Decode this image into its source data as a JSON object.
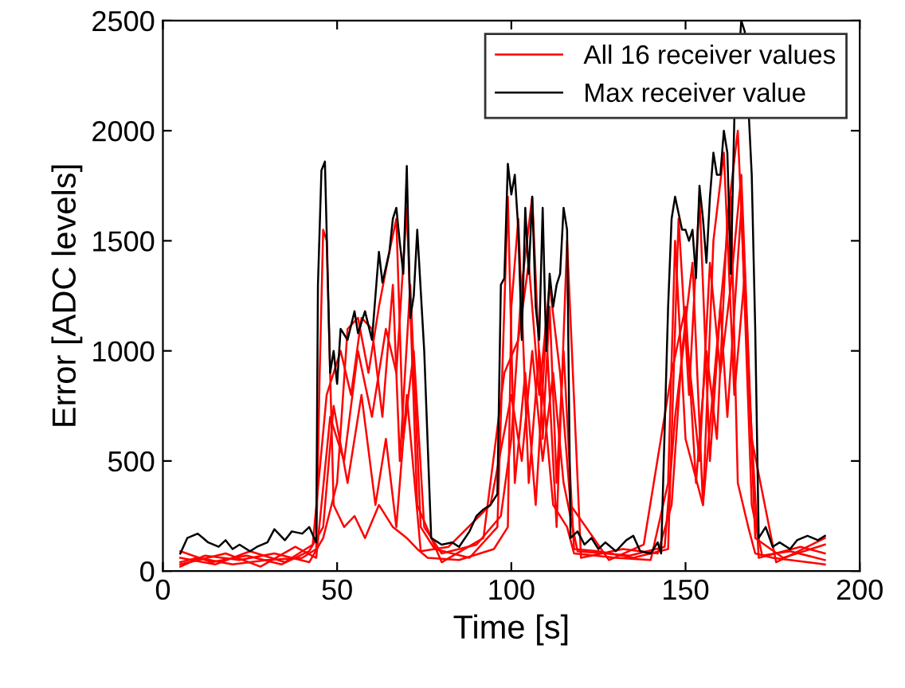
{
  "chart_data": {
    "type": "line",
    "xlabel": "Time [s]",
    "ylabel": "Error [ADC levels]",
    "xlim": [
      0,
      200
    ],
    "ylim": [
      0,
      2500
    ],
    "xticks": [
      0,
      50,
      100,
      150,
      200
    ],
    "yticks": [
      0,
      500,
      1000,
      1500,
      2000,
      2500
    ],
    "grid": false,
    "legend": "top right",
    "line_style": "solid",
    "marker": "none",
    "series": [
      {
        "name": "All 16 receiver values",
        "color": "#ff0000",
        "x": [
          5,
          10,
          20,
          30,
          40,
          44,
          45,
          46,
          47,
          49,
          52,
          55,
          58,
          62,
          66,
          70,
          73,
          76,
          85,
          95,
          99,
          100,
          102,
          105,
          108,
          112,
          116,
          118,
          130,
          140,
          145,
          147,
          150,
          155,
          160,
          163,
          165,
          168,
          170,
          175,
          185,
          190
        ],
        "values": [
          40,
          60,
          30,
          50,
          60,
          100,
          900,
          1550,
          1500,
          300,
          200,
          250,
          150,
          300,
          200,
          150,
          100,
          60,
          50,
          100,
          200,
          1200,
          1600,
          400,
          1000,
          300,
          200,
          80,
          60,
          50,
          400,
          1500,
          600,
          300,
          1200,
          1700,
          400,
          200,
          80,
          60,
          40,
          30
        ]
      },
      {
        "color": "#ff0000",
        "x": [
          5,
          12,
          22,
          32,
          42,
          46,
          50,
          53,
          56,
          59,
          62,
          65,
          67,
          69,
          72,
          75,
          80,
          90,
          97,
          100,
          103,
          106,
          109,
          111,
          113,
          115,
          118,
          125,
          135,
          145,
          148,
          151,
          154,
          157,
          160,
          162,
          166,
          169,
          172,
          180,
          190
        ],
        "values": [
          20,
          70,
          50,
          80,
          40,
          150,
          400,
          1100,
          1150,
          900,
          1200,
          1450,
          1600,
          600,
          1000,
          200,
          80,
          120,
          250,
          600,
          1300,
          1700,
          600,
          1200,
          400,
          1000,
          100,
          90,
          60,
          100,
          1600,
          800,
          1700,
          500,
          1200,
          700,
          1650,
          300,
          70,
          90,
          50
        ]
      },
      {
        "color": "#ff0000",
        "x": [
          5,
          15,
          25,
          35,
          43,
          47,
          51,
          54,
          57,
          60,
          63,
          66,
          68,
          71,
          74,
          78,
          88,
          96,
          99,
          101,
          104,
          107,
          110,
          113,
          116,
          120,
          132,
          142,
          146,
          149,
          152,
          155,
          158,
          161,
          164,
          167,
          170,
          178,
          190
        ],
        "values": [
          60,
          30,
          90,
          40,
          120,
          800,
          1000,
          800,
          1150,
          1100,
          700,
          1300,
          500,
          1300,
          200,
          100,
          60,
          200,
          1700,
          400,
          900,
          300,
          1100,
          200,
          1500,
          60,
          100,
          80,
          300,
          1000,
          1400,
          300,
          1500,
          1900,
          800,
          1350,
          150,
          60,
          120
        ]
      },
      {
        "color": "#ff0000",
        "x": [
          5,
          18,
          28,
          38,
          44,
          48,
          52,
          56,
          60,
          64,
          67,
          70,
          73,
          80,
          92,
          98,
          102,
          105,
          108,
          111,
          114,
          117,
          128,
          138,
          146,
          150,
          153,
          156,
          159,
          162,
          165,
          168,
          171,
          183,
          190
        ],
        "values": [
          30,
          80,
          20,
          110,
          60,
          700,
          500,
          1000,
          700,
          1100,
          900,
          1650,
          300,
          40,
          150,
          900,
          1050,
          1400,
          800,
          1300,
          900,
          300,
          50,
          120,
          900,
          1200,
          400,
          1000,
          600,
          1600,
          2000,
          900,
          60,
          110,
          80
        ]
      },
      {
        "color": "#ff0000",
        "x": [
          5,
          14,
          24,
          34,
          42,
          46,
          49,
          53,
          57,
          61,
          64,
          67,
          70,
          74,
          82,
          94,
          100,
          103,
          106,
          109,
          112,
          115,
          119,
          134,
          144,
          147,
          150,
          154,
          157,
          160,
          163,
          166,
          169,
          176,
          190
        ],
        "values": [
          90,
          40,
          70,
          30,
          90,
          200,
          750,
          400,
          800,
          300,
          600,
          200,
          800,
          90,
          110,
          300,
          800,
          500,
          1000,
          500,
          900,
          400,
          90,
          70,
          110,
          700,
          1100,
          500,
          1400,
          900,
          1300,
          1800,
          600,
          40,
          150
        ]
      },
      {
        "name": "Max receiver value",
        "color": "#000000",
        "x": [
          5,
          7,
          10,
          13,
          16,
          18,
          20,
          22,
          25,
          27,
          30,
          32,
          35,
          37,
          40,
          42,
          44,
          44.5,
          45.5,
          46.5,
          48,
          49,
          50,
          51,
          53,
          55,
          56,
          58,
          60,
          62,
          63,
          65,
          66,
          67,
          68,
          69,
          70,
          71,
          72,
          73,
          75,
          77,
          80,
          83,
          85,
          88,
          90,
          92,
          94,
          96,
          97,
          98,
          99,
          100,
          101,
          102,
          103,
          104,
          105,
          106,
          107,
          108,
          109,
          110,
          111,
          112,
          113,
          114,
          115,
          116,
          117,
          119,
          121,
          123,
          125,
          127,
          130,
          133,
          135,
          137,
          140,
          142,
          143,
          145,
          146,
          147,
          149,
          150,
          151,
          152,
          153,
          154,
          155,
          156,
          157,
          158,
          159,
          160,
          161,
          162,
          163,
          164,
          166,
          167,
          169,
          170,
          171,
          173,
          175,
          177,
          180,
          182,
          185,
          188,
          190
        ],
        "values": [
          80,
          150,
          170,
          130,
          110,
          140,
          100,
          120,
          90,
          110,
          130,
          190,
          140,
          180,
          170,
          200,
          130,
          1300,
          1820,
          1860,
          900,
          1000,
          850,
          1100,
          1050,
          1180,
          1080,
          1180,
          1050,
          1450,
          1310,
          1450,
          1600,
          1650,
          1490,
          1350,
          1840,
          1150,
          1250,
          1550,
          1000,
          150,
          120,
          130,
          110,
          180,
          250,
          280,
          300,
          350,
          1300,
          1330,
          1850,
          1710,
          1800,
          1550,
          1050,
          1650,
          1350,
          1700,
          1200,
          1050,
          1650,
          1000,
          1350,
          1200,
          1300,
          1350,
          1650,
          1550,
          150,
          180,
          120,
          150,
          100,
          130,
          90,
          140,
          160,
          90,
          80,
          130,
          80,
          1200,
          1600,
          1700,
          1550,
          1550,
          1500,
          1550,
          1330,
          1750,
          1600,
          1400,
          1700,
          1900,
          1800,
          1800,
          2000,
          1900,
          1350,
          2050,
          2500,
          2450,
          1800,
          1100,
          150,
          200,
          110,
          130,
          100,
          140,
          160,
          140,
          160
        ]
      }
    ]
  }
}
